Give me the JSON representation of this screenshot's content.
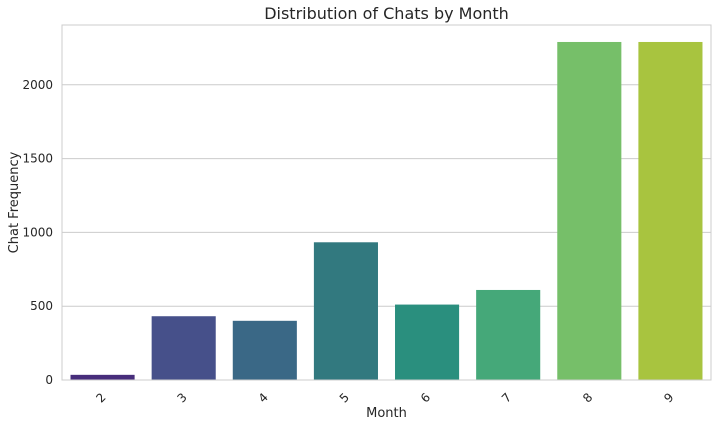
{
  "chart_data": {
    "type": "bar",
    "title": "Distribution of Chats by Month",
    "xlabel": "Month",
    "ylabel": "Chat Frequency",
    "categories": [
      "2",
      "3",
      "4",
      "5",
      "6",
      "7",
      "8",
      "9"
    ],
    "values": [
      35,
      432,
      401,
      933,
      511,
      610,
      2290,
      2290
    ],
    "colors": [
      "#472d7b",
      "#46508a",
      "#3a6886",
      "#32797f",
      "#2a8f7e",
      "#45a879",
      "#76bf69",
      "#a8c43f"
    ],
    "yticks": [
      0,
      500,
      1000,
      1500,
      2000
    ],
    "ylim": [
      0,
      2405
    ],
    "grid": "y",
    "grid_color": "#cccccc",
    "axis_color": "#cccccc",
    "background": "#ffffff",
    "xtick_rotation_deg": 45
  }
}
